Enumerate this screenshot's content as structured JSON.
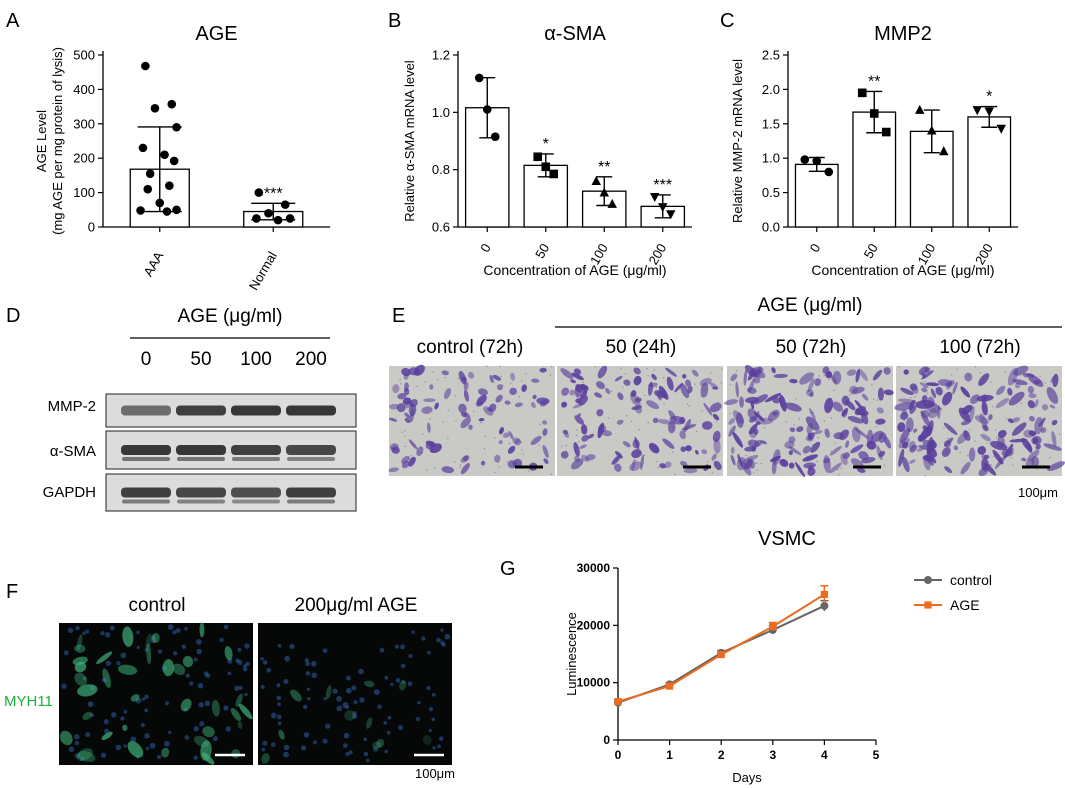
{
  "panel_letters": [
    "A",
    "B",
    "C",
    "D",
    "E",
    "F",
    "G"
  ],
  "chart_data": [
    {
      "panel": "A",
      "type": "bar",
      "title": "AGE",
      "ylabel": [
        "AGE Level",
        "(mg AGE per mg protein of lysis)"
      ],
      "categories": [
        "AAA",
        "Normal"
      ],
      "values": [
        168,
        45
      ],
      "sd": [
        123,
        24
      ],
      "points": [
        [
          468,
          357,
          345,
          290,
          230,
          210,
          192,
          155,
          120,
          110,
          70,
          50,
          48,
          45
        ],
        [
          100,
          65,
          40,
          25,
          25,
          20
        ]
      ],
      "significance": [
        "",
        "***"
      ],
      "yticks": [
        0,
        100,
        200,
        300,
        400,
        500
      ],
      "ylim": [
        0,
        500
      ]
    },
    {
      "panel": "B",
      "type": "bar",
      "title": "α-SMA",
      "ylabel": "Relative α-SMA mRNA level",
      "xlabel": "Concentration of AGE (μg/ml)",
      "categories": [
        "0",
        "50",
        "100",
        "200"
      ],
      "values": [
        1.016,
        0.815,
        0.725,
        0.672
      ],
      "sd": [
        0.105,
        0.04,
        0.05,
        0.04
      ],
      "points": [
        [
          1.12,
          1.01,
          0.915
        ],
        [
          0.845,
          0.81,
          0.785
        ],
        [
          0.76,
          0.72,
          0.68
        ],
        [
          0.705,
          0.67,
          0.645
        ]
      ],
      "markers": [
        "circle",
        "square",
        "triangle",
        "triangle-down"
      ],
      "significance": [
        "",
        "*",
        "**",
        "***"
      ],
      "yticks": [
        0.6,
        0.8,
        1.0,
        1.2
      ],
      "ytick_labels": [
        "0.6",
        "0.8",
        "1.0",
        "1.2"
      ],
      "ylim": [
        0.6,
        1.2
      ]
    },
    {
      "panel": "C",
      "type": "bar",
      "title": "MMP2",
      "ylabel": "Relative MMP-2 mRNA level",
      "xlabel": "Concentration of AGE (μg/ml)",
      "categories": [
        "0",
        "50",
        "100",
        "200"
      ],
      "values": [
        0.91,
        1.67,
        1.39,
        1.6
      ],
      "sd": [
        0.1,
        0.3,
        0.31,
        0.15
      ],
      "points": [
        [
          0.98,
          0.96,
          0.8
        ],
        [
          1.95,
          1.65,
          1.38
        ],
        [
          1.7,
          1.4,
          1.1
        ],
        [
          1.7,
          1.68,
          1.43
        ]
      ],
      "markers": [
        "circle",
        "square",
        "triangle",
        "triangle-down"
      ],
      "significance": [
        "",
        "**",
        "",
        "*"
      ],
      "yticks": [
        0,
        0.5,
        1.0,
        1.5,
        2.0,
        2.5
      ],
      "ytick_labels": [
        "0.0",
        "0.5",
        "1.0",
        "1.5",
        "2.0",
        "2.5"
      ],
      "ylim": [
        0,
        2.5
      ]
    },
    {
      "panel": "G",
      "type": "line",
      "title": "VSMC",
      "xlabel": "Days",
      "ylabel": "Luminescence",
      "x": [
        0,
        1,
        2,
        3,
        4
      ],
      "xticks": [
        0,
        1,
        2,
        3,
        4,
        5
      ],
      "yticks": [
        0,
        10000,
        20000,
        30000
      ],
      "xlim": [
        0,
        5
      ],
      "ylim": [
        0,
        30000
      ],
      "legend_position": "top-right",
      "series": [
        {
          "name": "control",
          "color": "#666666",
          "values": [
            6500,
            9700,
            15200,
            19200,
            23400
          ],
          "sd": [
            300,
            300,
            400,
            700,
            900
          ]
        },
        {
          "name": "AGE",
          "color": "#ec6b1f",
          "values": [
            6700,
            9400,
            14900,
            19800,
            25400
          ],
          "sd": [
            300,
            300,
            400,
            700,
            1500
          ]
        }
      ]
    }
  ],
  "blot": {
    "header": "AGE (μg/ml)",
    "lanes": [
      "0",
      "50",
      "100",
      "200"
    ],
    "bands": [
      {
        "label": "MMP-2",
        "intensity": [
          0.55,
          0.85,
          0.9,
          0.9
        ]
      },
      {
        "label": "α-SMA",
        "intensity": [
          0.9,
          0.9,
          0.85,
          0.8
        ]
      },
      {
        "label": "GAPDH",
        "intensity": [
          0.85,
          0.8,
          0.75,
          0.85
        ]
      }
    ]
  },
  "migration": {
    "header": "AGE (μg/ml)",
    "panels": [
      {
        "label": "control (72h)",
        "density": 0.45
      },
      {
        "label": "50 (24h)",
        "density": 0.6
      },
      {
        "label": "50 (72h)",
        "density": 0.85
      },
      {
        "label": "100 (72h)",
        "density": 0.95
      }
    ],
    "scale_bar_label": "100μm",
    "stain_color": "#5a3f9e",
    "background_color": "#c9c9c6"
  },
  "fluorescence": {
    "row_label": "MYH11",
    "row_label_color": "#20b040",
    "panels": [
      {
        "label": "control",
        "density": 0.85
      },
      {
        "label": "200μg/ml AGE",
        "density": 0.25
      }
    ],
    "scale_bar_label": "100μm"
  }
}
